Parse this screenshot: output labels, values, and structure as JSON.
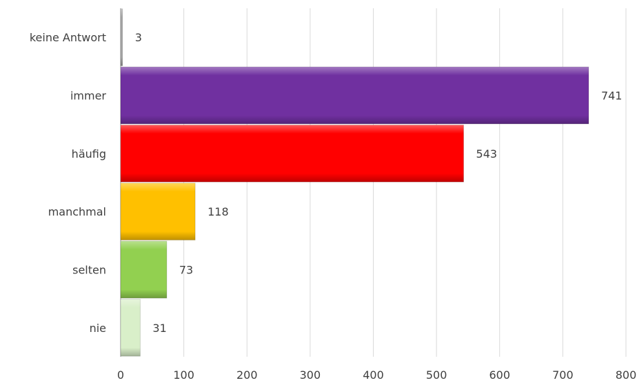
{
  "chart_data": {
    "type": "bar",
    "orientation": "horizontal",
    "categories": [
      "keine Antwort",
      "immer",
      "häufig",
      "manchmal",
      "selten",
      "nie"
    ],
    "values": [
      3,
      741,
      543,
      118,
      73,
      31
    ],
    "colors": [
      "#a6a6a6",
      "#7030a0",
      "#ff0000",
      "#ffc000",
      "#92d050",
      "#d9efc9"
    ],
    "xlim": [
      0,
      800
    ],
    "xticks": [
      0,
      100,
      200,
      300,
      400,
      500,
      600,
      700,
      800
    ],
    "grid": "vertical",
    "data_labels": true,
    "legend": "none"
  }
}
